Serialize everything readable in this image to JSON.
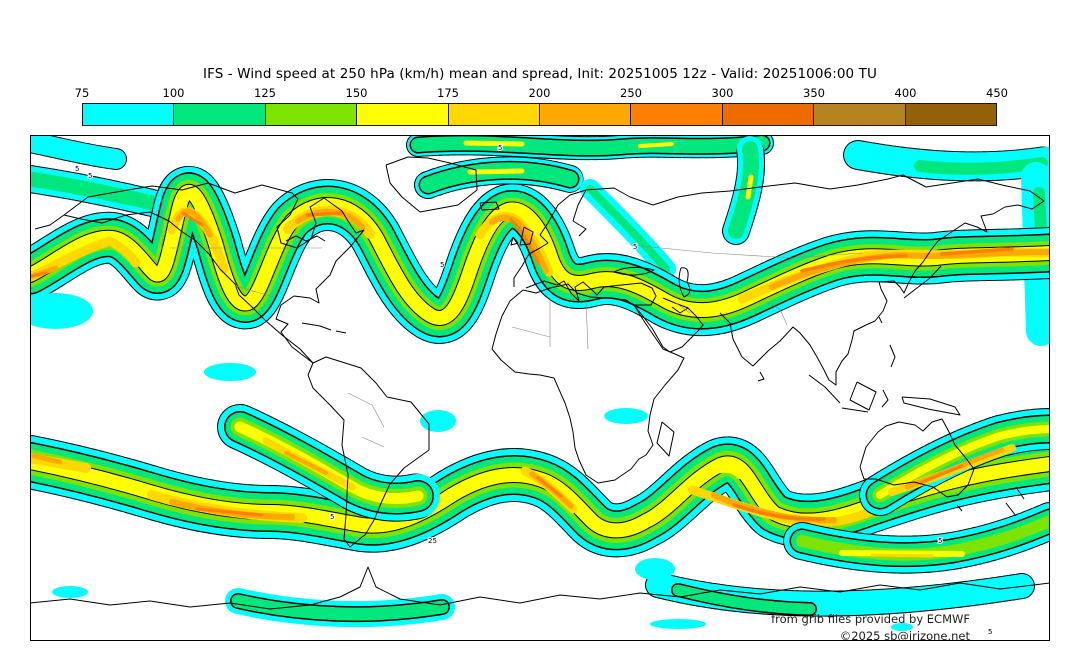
{
  "header": {
    "title": "IFS - Wind speed at 250 hPa (km/h) mean and spread, Init: 20251005 12z - Valid: 20251006:00 TU"
  },
  "colorbar": {
    "ticks": [
      "75",
      "100",
      "125",
      "150",
      "175",
      "200",
      "250",
      "300",
      "350",
      "400",
      "450"
    ],
    "colors": [
      "#00ffff",
      "#00e87d",
      "#7ce400",
      "#ffff00",
      "#ffd800",
      "#ffa900",
      "#ff7f00",
      "#ee6b00",
      "#b5831f",
      "#95600a"
    ]
  },
  "map": {
    "attribution_line1": "from grib files provided by ECMWF",
    "attribution_line2": "©2025 sb@irizone.net",
    "contour_labels": {
      "spread": "5",
      "spread_25": "25"
    }
  },
  "chart_data": {
    "type": "heatmap",
    "title": "IFS - Wind speed at 250 hPa (km/h) mean and spread, Init: 20251005 12z - Valid: 20251006:00 TU",
    "variable": "wind speed at 250 hPa",
    "unit": "km/h",
    "model": "IFS",
    "init": "20251005 12z",
    "valid": "20251006:00 TU",
    "legend_position": "top",
    "colorbar_bin_edges": [
      75,
      100,
      125,
      150,
      175,
      200,
      250,
      300,
      350,
      400,
      450
    ],
    "colorbar_colors": [
      "#00ffff",
      "#00e87d",
      "#7ce400",
      "#ffff00",
      "#ffd800",
      "#ffa900",
      "#ff7f00",
      "#ee6b00",
      "#b5831f",
      "#95600a"
    ],
    "projection": {
      "type": "equirectangular",
      "lon_range": [
        -180,
        180
      ],
      "lat_range": [
        90,
        -90
      ]
    },
    "contours": "solid black = ensemble-mean wind speed; dashed black labelled 5 / 25 = ensemble spread",
    "features": [
      "Northern-hemisphere jet with 200-300 km/h cores over the NE Pacific, Alaska/Yukon, Hudson Bay-Labrador, the North Atlantic near Iceland-Scandinavia, and a long jet across central and east Asia",
      "Southern-hemisphere storm track with 200-300 km/h cores in the SE Pacific, south of South America, the South Atlantic and the southern Indian Ocean",
      "Weaker 75-100 km/h (cyan) bands along the tropics and around Antarctica"
    ]
  }
}
